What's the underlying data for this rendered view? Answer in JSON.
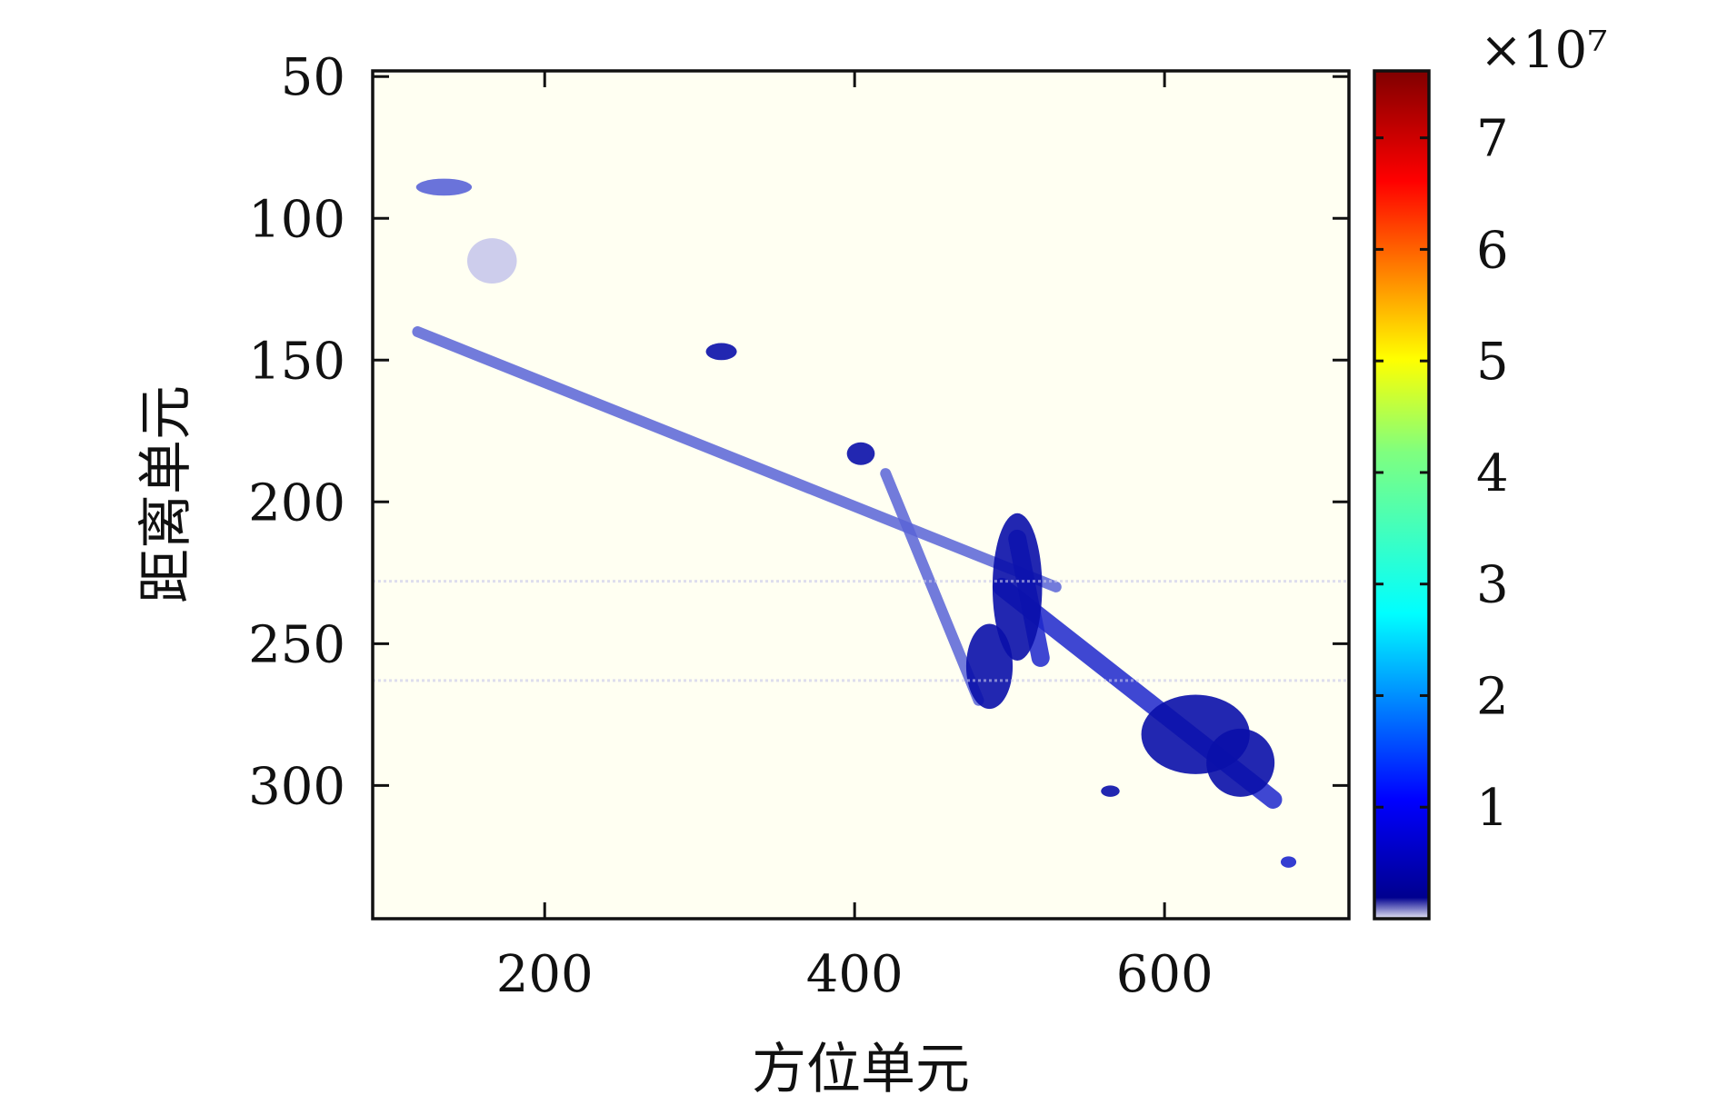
{
  "chart_data": {
    "type": "heatmap",
    "title": "",
    "xlabel": "方位单元",
    "ylabel": "距离单元",
    "xlim": [
      89,
      719
    ],
    "ylim": [
      347,
      48
    ],
    "y_axis_reversed": true,
    "x_ticks": [
      200,
      400,
      600
    ],
    "x_tick_labels": [
      "200",
      "400",
      "600"
    ],
    "y_ticks": [
      50,
      100,
      150,
      200,
      250,
      300
    ],
    "y_tick_labels": [
      "50",
      "100",
      "150",
      "200",
      "250",
      "300"
    ],
    "grid": false,
    "background_color": "#fffff2",
    "colorbar": {
      "min": 0,
      "max": 7.6,
      "ticks": [
        1,
        2,
        3,
        4,
        5,
        6,
        7
      ],
      "tick_labels": [
        "1",
        "2",
        "3",
        "4",
        "5",
        "6",
        "7"
      ],
      "multiplier_label": "×10⁷",
      "colormap": "jet"
    },
    "features": [
      {
        "kind": "band",
        "x": [
          118,
          530
        ],
        "y": [
          140,
          230
        ],
        "value": 0.4
      },
      {
        "kind": "band",
        "x": [
          495,
          670
        ],
        "y": [
          230,
          305
        ],
        "value": 0.5
      },
      {
        "kind": "band",
        "x": [
          420,
          480
        ],
        "y": [
          190,
          270
        ],
        "value": 0.3
      },
      {
        "kind": "band",
        "x": [
          505,
          520
        ],
        "y": [
          213,
          255
        ],
        "value": 0.6
      },
      {
        "kind": "blob",
        "x": 505,
        "y": 230,
        "rx": 16,
        "ry": 26,
        "value": 1.0
      },
      {
        "kind": "blob",
        "x": 487,
        "y": 258,
        "rx": 15,
        "ry": 15,
        "value": 0.9
      },
      {
        "kind": "blob",
        "x": 620,
        "y": 282,
        "rx": 35,
        "ry": 14,
        "value": 0.8
      },
      {
        "kind": "blob",
        "x": 649,
        "y": 292,
        "rx": 22,
        "ry": 12,
        "value": 0.9
      },
      {
        "kind": "blob",
        "x": 404,
        "y": 183,
        "rx": 9,
        "ry": 4,
        "value": 0.9
      },
      {
        "kind": "blob",
        "x": 314,
        "y": 147,
        "rx": 10,
        "ry": 3,
        "value": 0.8
      },
      {
        "kind": "blob",
        "x": 135,
        "y": 89,
        "rx": 18,
        "ry": 3,
        "value": 0.3
      },
      {
        "kind": "blob",
        "x": 166,
        "y": 115,
        "rx": 16,
        "ry": 8,
        "value": 0.15
      },
      {
        "kind": "blob",
        "x": 680,
        "y": 327,
        "rx": 5,
        "ry": 2,
        "value": 0.7
      },
      {
        "kind": "blob",
        "x": 565,
        "y": 302,
        "rx": 6,
        "ry": 2,
        "value": 0.8
      },
      {
        "kind": "line",
        "y": 228,
        "x": [
          89,
          719
        ],
        "value": 0.12
      },
      {
        "kind": "line",
        "y": 263,
        "x": [
          89,
          719
        ],
        "value": 0.06
      }
    ]
  }
}
